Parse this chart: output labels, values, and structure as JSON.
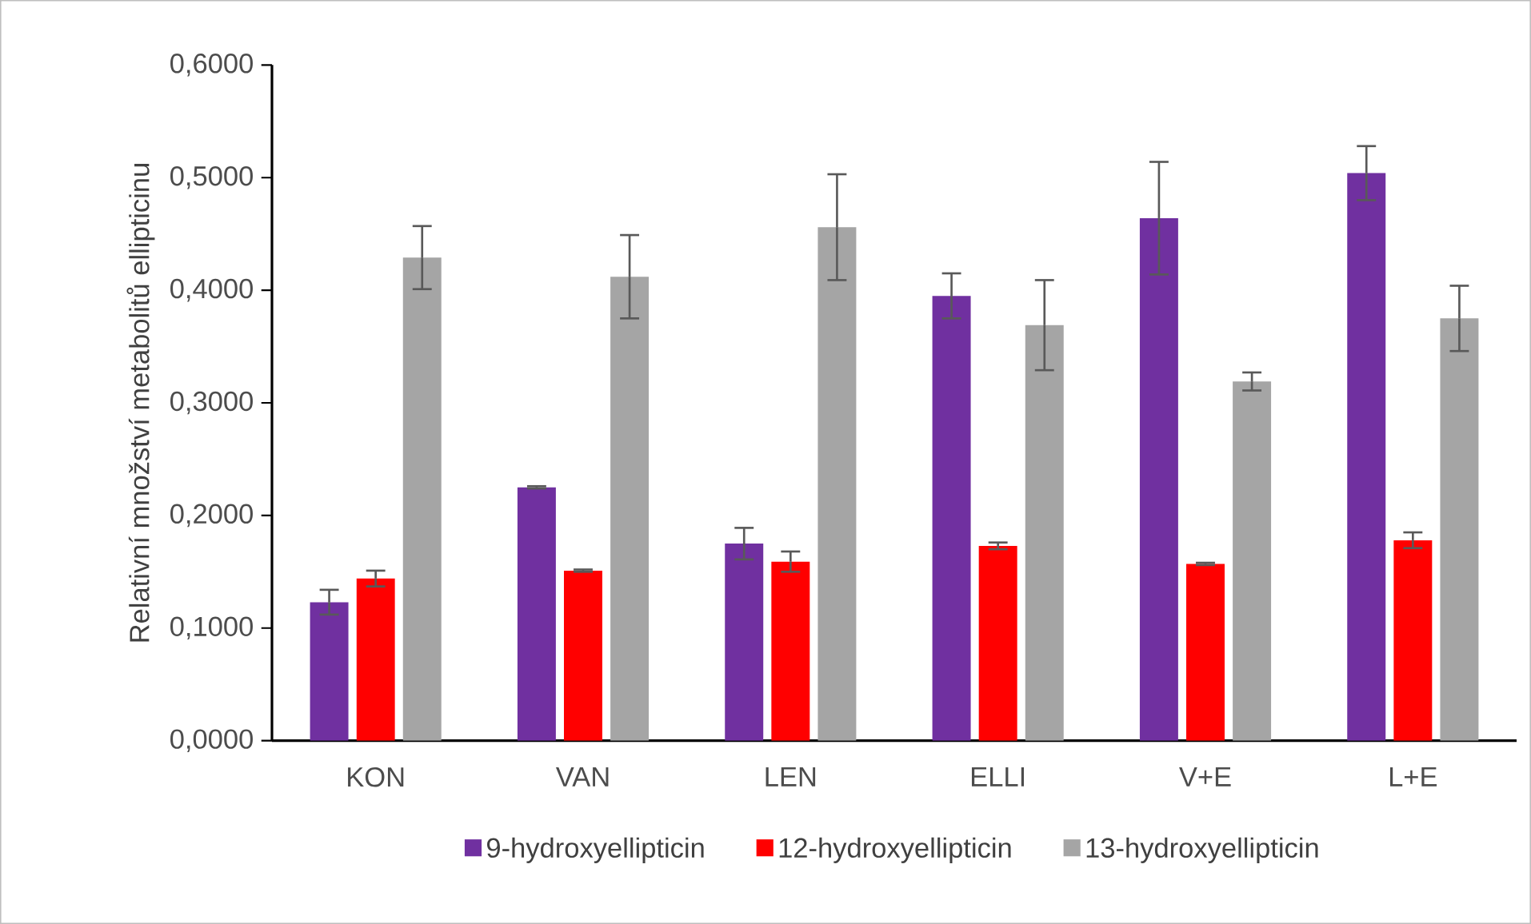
{
  "chart_data": {
    "type": "bar",
    "ylabel": "Relativní množství metabolitů ellipticinu",
    "categories": [
      "KON",
      "VAN",
      "LEN",
      "ELLI",
      "V+E",
      "L+E"
    ],
    "series": [
      {
        "name": "9-hydroxyellipticin",
        "color": "#7030a0",
        "values": [
          0.123,
          0.225,
          0.175,
          0.395,
          0.464,
          0.504
        ],
        "errors": [
          0.011,
          0.001,
          0.014,
          0.02,
          0.05,
          0.024
        ]
      },
      {
        "name": "12-hydroxyellipticin",
        "color": "#ff0000",
        "values": [
          0.144,
          0.151,
          0.159,
          0.173,
          0.157,
          0.178
        ],
        "errors": [
          0.007,
          0.001,
          0.009,
          0.003,
          0.001,
          0.007
        ]
      },
      {
        "name": "13-hydroxyellipticin",
        "color": "#a5a5a5",
        "values": [
          0.429,
          0.412,
          0.456,
          0.369,
          0.319,
          0.375
        ],
        "errors": [
          0.028,
          0.037,
          0.047,
          0.04,
          0.008,
          0.029
        ]
      }
    ],
    "ylim": [
      0,
      0.6
    ],
    "yticks": [
      {
        "value": 0,
        "label": "0,0000"
      },
      {
        "value": 0.1,
        "label": "0,1000"
      },
      {
        "value": 0.2,
        "label": "0,2000"
      },
      {
        "value": 0.3,
        "label": "0,3000"
      },
      {
        "value": 0.4,
        "label": "0,4000"
      },
      {
        "value": 0.5,
        "label": "0,5000"
      },
      {
        "value": 0.6,
        "label": "0,6000"
      }
    ],
    "grid": false,
    "legend": "bottom"
  }
}
